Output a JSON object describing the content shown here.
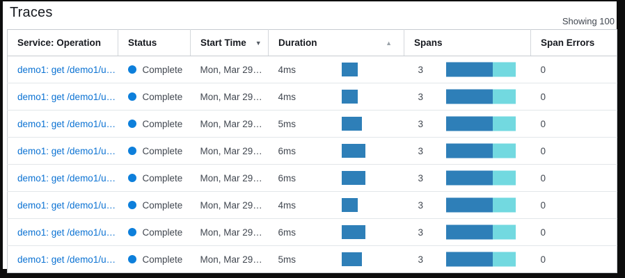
{
  "page": {
    "title": "Traces",
    "showing_label": "Showing 100"
  },
  "colors": {
    "link": "#0b72d3",
    "status_dot": "#0d7fdb",
    "bar_blue": "#2e7fb8",
    "bar_teal": "#72d9e0"
  },
  "icons": {
    "sort_desc": "▼",
    "sort_asc": "▲"
  },
  "table": {
    "columns": [
      {
        "label": "Service: Operation"
      },
      {
        "label": "Status"
      },
      {
        "label": "Start Time",
        "sort": "desc"
      },
      {
        "label": "Duration",
        "sort": "asc"
      },
      {
        "label": "Spans"
      },
      {
        "label": "Span Errors"
      }
    ],
    "rows": [
      {
        "service_operation": "demo1: get /demo1/u…",
        "status": "Complete",
        "start_time": "Mon, Mar 29…",
        "duration": "4ms",
        "duration_ms": 4,
        "spans": "3",
        "span_errors": "0",
        "spans_bar": {
          "blue_pct": 67,
          "teal_pct": 33
        }
      },
      {
        "service_operation": "demo1: get /demo1/u…",
        "status": "Complete",
        "start_time": "Mon, Mar 29…",
        "duration": "4ms",
        "duration_ms": 4,
        "spans": "3",
        "span_errors": "0",
        "spans_bar": {
          "blue_pct": 67,
          "teal_pct": 33
        }
      },
      {
        "service_operation": "demo1: get /demo1/u…",
        "status": "Complete",
        "start_time": "Mon, Mar 29…",
        "duration": "5ms",
        "duration_ms": 5,
        "spans": "3",
        "span_errors": "0",
        "spans_bar": {
          "blue_pct": 67,
          "teal_pct": 33
        }
      },
      {
        "service_operation": "demo1: get /demo1/u…",
        "status": "Complete",
        "start_time": "Mon, Mar 29…",
        "duration": "6ms",
        "duration_ms": 6,
        "spans": "3",
        "span_errors": "0",
        "spans_bar": {
          "blue_pct": 67,
          "teal_pct": 33
        }
      },
      {
        "service_operation": "demo1: get /demo1/u…",
        "status": "Complete",
        "start_time": "Mon, Mar 29…",
        "duration": "6ms",
        "duration_ms": 6,
        "spans": "3",
        "span_errors": "0",
        "spans_bar": {
          "blue_pct": 67,
          "teal_pct": 33
        }
      },
      {
        "service_operation": "demo1: get /demo1/u…",
        "status": "Complete",
        "start_time": "Mon, Mar 29…",
        "duration": "4ms",
        "duration_ms": 4,
        "spans": "3",
        "span_errors": "0",
        "spans_bar": {
          "blue_pct": 67,
          "teal_pct": 33
        }
      },
      {
        "service_operation": "demo1: get /demo1/u…",
        "status": "Complete",
        "start_time": "Mon, Mar 29…",
        "duration": "6ms",
        "duration_ms": 6,
        "spans": "3",
        "span_errors": "0",
        "spans_bar": {
          "blue_pct": 67,
          "teal_pct": 33
        }
      },
      {
        "service_operation": "demo1: get /demo1/u…",
        "status": "Complete",
        "start_time": "Mon, Mar 29…",
        "duration": "5ms",
        "duration_ms": 5,
        "spans": "3",
        "span_errors": "0",
        "spans_bar": {
          "blue_pct": 67,
          "teal_pct": 33
        }
      }
    ]
  }
}
